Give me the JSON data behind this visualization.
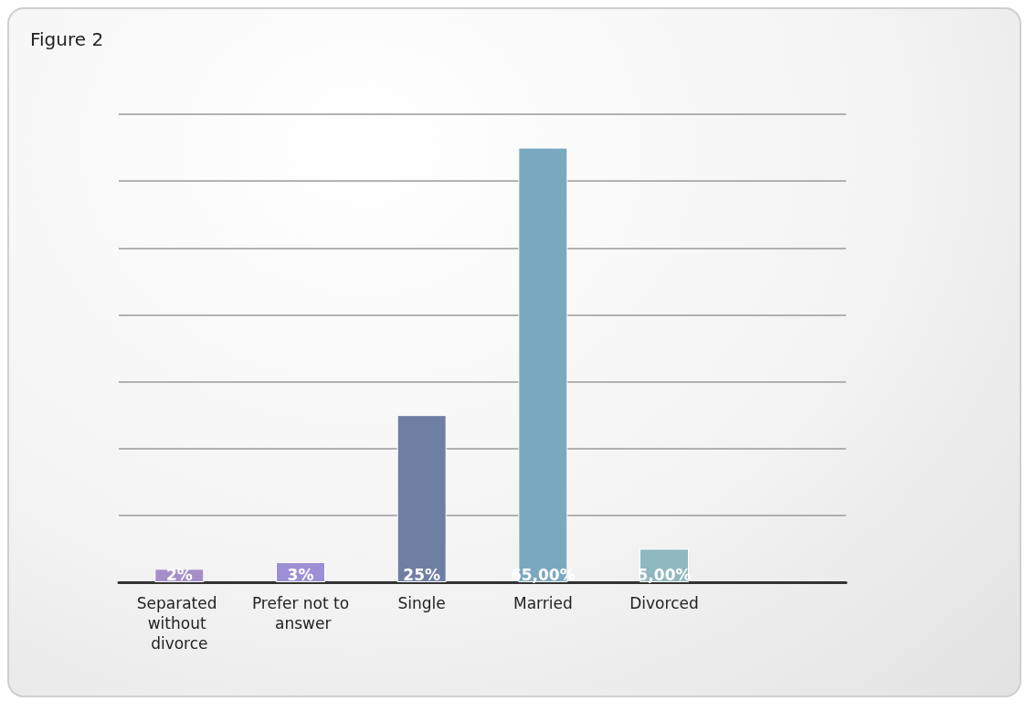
{
  "chart_data": {
    "type": "bar",
    "title": "Figure 2",
    "categories": [
      "Separated without divorce",
      "Prefer not to answer",
      "Single",
      "Married",
      "Divorced",
      null
    ],
    "values": [
      2,
      3,
      25,
      65,
      5,
      null
    ],
    "colors": [
      "#a48fc9",
      "#9d8fd6",
      "#6f7fa3",
      "#7aa8be",
      "#8fb8bf",
      "#8fb8bf"
    ],
    "value_labels": [
      "2%",
      "3%",
      "25%",
      "65,00%",
      "5,00%",
      null
    ],
    "ylim": [
      0,
      70
    ],
    "yticks": [
      {
        "value": 0,
        "label": null
      },
      {
        "value": 10,
        "label": null
      },
      {
        "value": 20,
        "label": null
      },
      {
        "value": 30,
        "label": null
      },
      {
        "value": 40,
        "label": null
      },
      {
        "value": 50,
        "label": null
      },
      {
        "value": 60,
        "label": null
      },
      {
        "value": 70,
        "label": null
      }
    ],
    "tick_labels": "x",
    "grid": "y"
  }
}
